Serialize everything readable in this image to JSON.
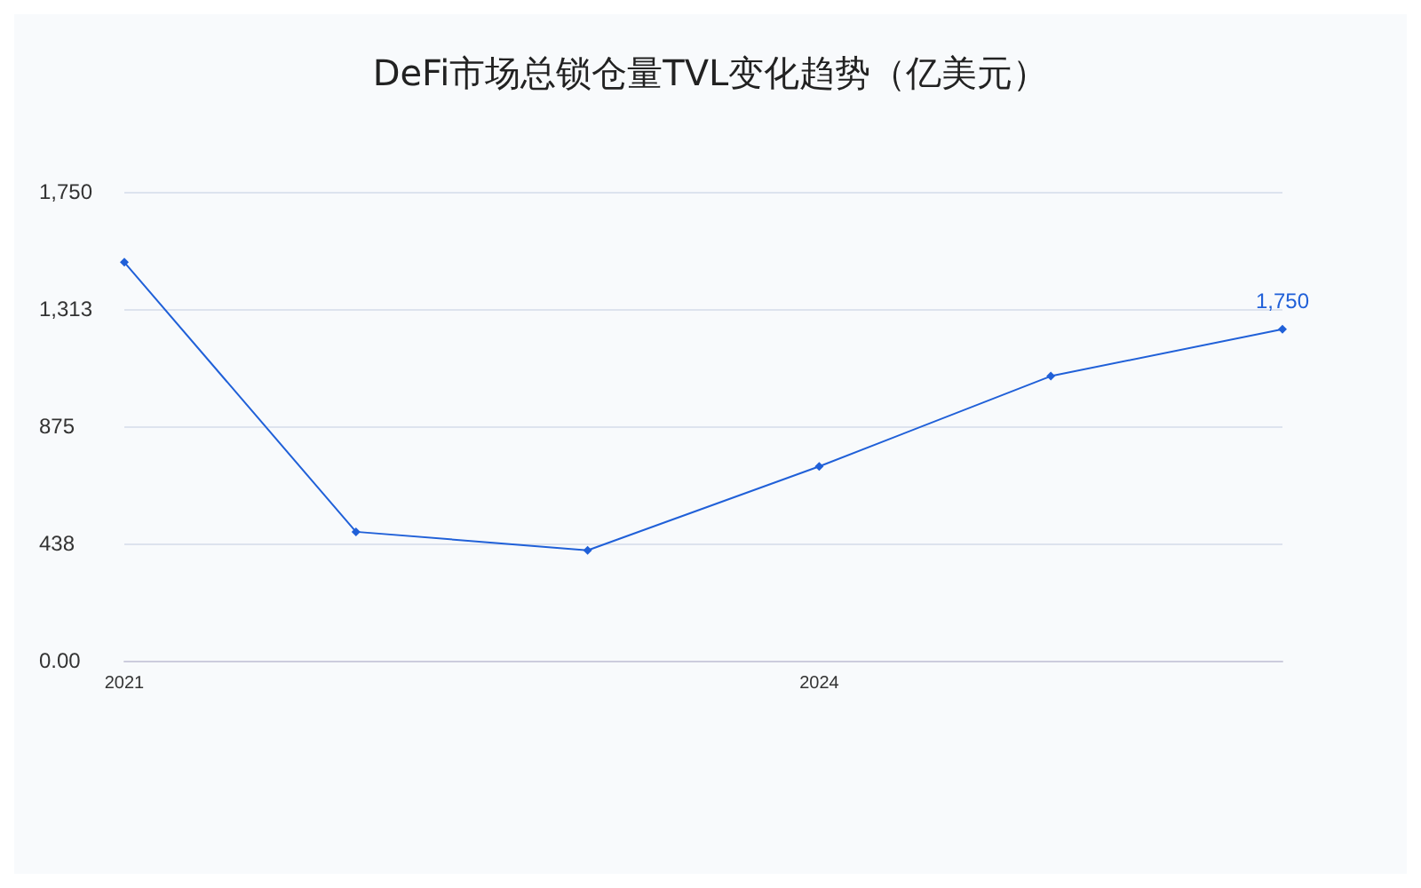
{
  "chart_data": {
    "type": "line",
    "title": "DeFi市场总锁仓量TVL变化趋势（亿美元）",
    "x": [
      2021,
      2022,
      2023,
      2024,
      2025,
      2026
    ],
    "series": [
      {
        "color": "#2060d8",
        "values": [
          1487,
          481,
          412,
          725,
          1062,
          1237
        ]
      }
    ],
    "annotations": [
      {
        "text": "1,750",
        "x": 2026,
        "y": 1237
      }
    ],
    "xlim": [
      2021,
      2026
    ],
    "xticks": [
      2021,
      2024
    ],
    "ylim": [
      0,
      1750
    ],
    "yticks": [
      {
        "value": 0,
        "label": "0.00"
      },
      {
        "value": 437.5,
        "label": "438"
      },
      {
        "value": 875,
        "label": "875"
      },
      {
        "value": 1312.5,
        "label": "1,313"
      },
      {
        "value": 1750,
        "label": "1,750"
      }
    ],
    "grid": "y",
    "marker": "diamond",
    "line_style": "solid"
  }
}
